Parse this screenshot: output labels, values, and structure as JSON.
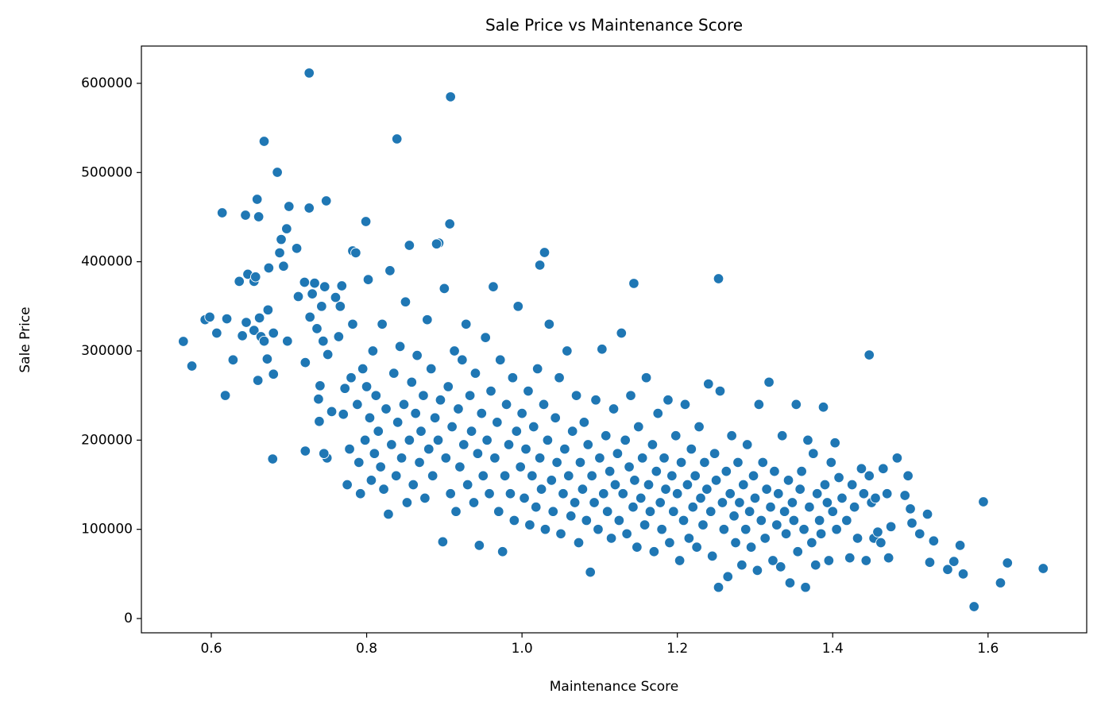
{
  "chart_data": {
    "type": "scatter",
    "title": "Sale Price vs Maintenance Score",
    "x_label": "Maintenance Score",
    "y_label": "Sale Price",
    "color": "#1f77b4",
    "grid": false,
    "xlim": [
      0.51,
      1.727
    ],
    "ylim": [
      -16000,
      641800
    ],
    "xticks": [
      0.6,
      0.8,
      {
        "value": 1,
        "label": "1.0"
      },
      1.2,
      1.4,
      1.6
    ],
    "yticks": [
      0,
      100000,
      200000,
      300000,
      400000,
      500000,
      600000
    ],
    "x": [
      0.726,
      0.908,
      0.668,
      0.839,
      0.685,
      0.614,
      0.644,
      0.661,
      0.659,
      0.748,
      0.7,
      0.726,
      0.799,
      0.564,
      0.575,
      0.618,
      0.679,
      0.721,
      1.144,
      1.253,
      1.447,
      1.582,
      1.594,
      1.625,
      1.671,
      1.616,
      1.029,
      1.023,
      0.907,
      0.893,
      0.855,
      0.782,
      0.592,
      0.598,
      0.607,
      0.62,
      0.628,
      0.636,
      0.64,
      0.645,
      0.647,
      0.655,
      0.657,
      0.655,
      0.66,
      0.662,
      0.664,
      0.668,
      0.672,
      0.673,
      0.674,
      0.68,
      0.68,
      0.688,
      0.69,
      0.693,
      0.697,
      0.698,
      0.71,
      0.712,
      0.72,
      0.721,
      0.727,
      0.73,
      0.733,
      0.736,
      0.738,
      0.74,
      0.742,
      0.744,
      0.746,
      0.749,
      0.745,
      0.739,
      0.75,
      0.755,
      0.76,
      0.764,
      0.766,
      0.768,
      0.77,
      0.772,
      0.775,
      0.778,
      0.78,
      0.782,
      0.786,
      0.788,
      0.79,
      0.792,
      0.795,
      0.798,
      0.8,
      0.802,
      0.804,
      0.806,
      0.808,
      0.81,
      0.812,
      0.815,
      0.818,
      0.82,
      0.822,
      0.825,
      0.828,
      0.83,
      0.832,
      0.835,
      0.838,
      0.84,
      0.843,
      0.845,
      0.848,
      0.85,
      0.852,
      0.855,
      0.858,
      0.86,
      0.863,
      0.865,
      0.868,
      0.87,
      0.873,
      0.875,
      0.878,
      0.88,
      0.883,
      0.885,
      0.888,
      0.89,
      0.892,
      0.895,
      0.898,
      0.9,
      0.902,
      0.905,
      0.908,
      0.91,
      0.913,
      0.915,
      0.918,
      0.92,
      0.923,
      0.925,
      0.928,
      0.93,
      0.933,
      0.935,
      0.938,
      0.94,
      0.943,
      0.945,
      0.948,
      0.95,
      0.953,
      0.955,
      0.958,
      0.96,
      0.963,
      0.965,
      0.968,
      0.97,
      0.972,
      0.975,
      0.978,
      0.98,
      0.983,
      0.985,
      0.988,
      0.99,
      0.993,
      0.995,
      0.998,
      1.0,
      1.003,
      1.005,
      1.008,
      1.01,
      1.013,
      1.015,
      1.018,
      1.02,
      1.023,
      1.025,
      1.028,
      1.03,
      1.033,
      1.035,
      1.038,
      1.04,
      1.043,
      1.045,
      1.048,
      1.05,
      1.053,
      1.055,
      1.058,
      1.06,
      1.063,
      1.065,
      1.068,
      1.07,
      1.073,
      1.075,
      1.078,
      1.08,
      1.083,
      1.085,
      1.088,
      1.09,
      1.093,
      1.095,
      1.098,
      1.1,
      1.103,
      1.105,
      1.108,
      1.11,
      1.113,
      1.115,
      1.118,
      1.12,
      1.123,
      1.125,
      1.128,
      1.13,
      1.133,
      1.135,
      1.138,
      1.14,
      1.143,
      1.145,
      1.148,
      1.15,
      1.153,
      1.155,
      1.158,
      1.16,
      1.163,
      1.165,
      1.168,
      1.17,
      1.173,
      1.175,
      1.178,
      1.18,
      1.183,
      1.185,
      1.188,
      1.19,
      1.193,
      1.195,
      1.198,
      1.2,
      1.203,
      1.205,
      1.208,
      1.21,
      1.213,
      1.215,
      1.218,
      1.22,
      1.223,
      1.225,
      1.228,
      1.23,
      1.233,
      1.235,
      1.238,
      1.24,
      1.243,
      1.245,
      1.248,
      1.25,
      1.253,
      1.255,
      1.258,
      1.26,
      1.263,
      1.265,
      1.268,
      1.27,
      1.273,
      1.275,
      1.278,
      1.28,
      1.283,
      1.285,
      1.288,
      1.29,
      1.293,
      1.295,
      1.298,
      1.3,
      1.303,
      1.305,
      1.308,
      1.31,
      1.313,
      1.315,
      1.318,
      1.32,
      1.323,
      1.325,
      1.328,
      1.33,
      1.333,
      1.335,
      1.338,
      1.34,
      1.343,
      1.345,
      1.348,
      1.35,
      1.353,
      1.355,
      1.358,
      1.36,
      1.363,
      1.365,
      1.368,
      1.37,
      1.373,
      1.375,
      1.378,
      1.38,
      1.383,
      1.385,
      1.388,
      1.39,
      1.393,
      1.395,
      1.398,
      1.4,
      1.403,
      1.405,
      1.408,
      1.412,
      1.418,
      1.422,
      1.425,
      1.428,
      1.432,
      1.437,
      1.44,
      1.443,
      1.447,
      1.45,
      1.453,
      1.455,
      1.458,
      1.462,
      1.465,
      1.47,
      1.472,
      1.475,
      1.483,
      1.493,
      1.497,
      1.5,
      1.502,
      1.512,
      1.522,
      1.525,
      1.53,
      1.548,
      1.556,
      1.564,
      1.568
    ],
    "values": [
      611600,
      584900,
      535000,
      537700,
      500300,
      454900,
      452200,
      450400,
      470000,
      468200,
      462000,
      460200,
      445100,
      310700,
      283100,
      250100,
      178900,
      187800,
      375700,
      381000,
      295500,
      13400,
      130900,
      62300,
      56100,
      40000,
      410400,
      396200,
      442400,
      421000,
      418400,
      412200,
      335000,
      338000,
      320000,
      336000,
      290000,
      378000,
      317000,
      332000,
      386000,
      378000,
      383000,
      323000,
      267000,
      337000,
      316000,
      311000,
      291000,
      346000,
      393000,
      320000,
      274000,
      410000,
      425000,
      395000,
      437000,
      311000,
      415000,
      361000,
      377000,
      287000,
      338000,
      364000,
      376000,
      325000,
      246000,
      261000,
      350000,
      311000,
      372000,
      180000,
      185000,
      221000,
      296000,
      232000,
      360000,
      316000,
      350000,
      373000,
      229000,
      258000,
      150000,
      190000,
      270000,
      330000,
      410000,
      240000,
      175000,
      140000,
      280000,
      200000,
      260000,
      380000,
      225000,
      155000,
      300000,
      185000,
      250000,
      210000,
      170000,
      330000,
      145000,
      235000,
      117000,
      390000,
      195000,
      275000,
      160000,
      220000,
      305000,
      180000,
      240000,
      355000,
      130000,
      200000,
      265000,
      150000,
      230000,
      295000,
      175000,
      210000,
      250000,
      135000,
      335000,
      190000,
      280000,
      160000,
      225000,
      420000,
      200000,
      245000,
      86000,
      370000,
      180000,
      260000,
      140000,
      215000,
      300000,
      120000,
      235000,
      170000,
      290000,
      195000,
      330000,
      150000,
      250000,
      210000,
      130000,
      275000,
      185000,
      82000,
      230000,
      160000,
      315000,
      200000,
      140000,
      255000,
      372000,
      180000,
      220000,
      120000,
      290000,
      75000,
      160000,
      240000,
      195000,
      140000,
      270000,
      110000,
      210000,
      350000,
      170000,
      230000,
      135000,
      190000,
      255000,
      105000,
      160000,
      215000,
      125000,
      280000,
      180000,
      145000,
      240000,
      100000,
      200000,
      330000,
      155000,
      120000,
      225000,
      175000,
      270000,
      95000,
      140000,
      190000,
      300000,
      160000,
      115000,
      210000,
      130000,
      250000,
      85000,
      175000,
      145000,
      220000,
      110000,
      195000,
      52000,
      160000,
      130000,
      245000,
      100000,
      180000,
      302000,
      140000,
      205000,
      120000,
      165000,
      90000,
      235000,
      150000,
      185000,
      110000,
      320000,
      140000,
      200000,
      95000,
      170000,
      250000,
      125000,
      155000,
      80000,
      215000,
      135000,
      180000,
      105000,
      270000,
      150000,
      120000,
      195000,
      75000,
      165000,
      230000,
      130000,
      100000,
      180000,
      145000,
      245000,
      85000,
      160000,
      120000,
      205000,
      140000,
      65000,
      175000,
      110000,
      240000,
      150000,
      90000,
      190000,
      125000,
      160000,
      80000,
      215000,
      135000,
      105000,
      175000,
      145000,
      263000,
      120000,
      70000,
      185000,
      155000,
      35000,
      255000,
      130000,
      100000,
      165000,
      47000,
      140000,
      205000,
      115000,
      85000,
      175000,
      130000,
      60000,
      150000,
      100000,
      195000,
      120000,
      80000,
      160000,
      135000,
      54000,
      240000,
      110000,
      175000,
      90000,
      145000,
      265000,
      125000,
      65000,
      165000,
      105000,
      140000,
      58000,
      205000,
      120000,
      95000,
      155000,
      40000,
      130000,
      110000,
      240000,
      75000,
      145000,
      165000,
      100000,
      35000,
      200000,
      125000,
      85000,
      185000,
      60000,
      140000,
      110000,
      95000,
      237000,
      150000,
      130000,
      65000,
      175000,
      120000,
      197000,
      100000,
      158000,
      135000,
      110000,
      68000,
      150000,
      125000,
      90000,
      168000,
      140000,
      65000,
      160000,
      130000,
      90000,
      135000,
      97000,
      85000,
      168000,
      140000,
      68000,
      103000,
      180000,
      138000,
      160000,
      123000,
      107000,
      95000,
      117000,
      63000,
      87000,
      55000,
      64000,
      82000,
      50000
    ]
  }
}
